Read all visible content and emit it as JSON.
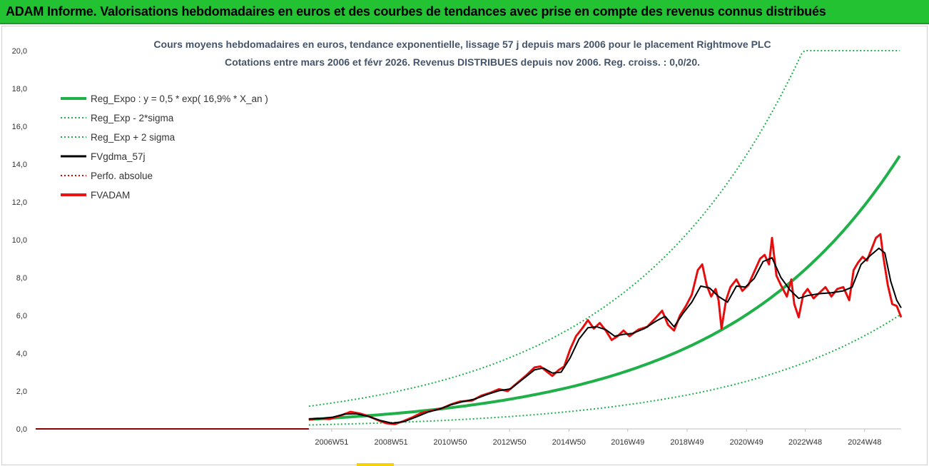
{
  "header": {
    "title": "ADAM Informe. Valorisations hebdomadaires en euros et des courbes de tendances avec prise en compte des revenus connus distribués",
    "background": "#22c232"
  },
  "chart_data": {
    "type": "line",
    "title": "Cours moyens hebdomadaires en euros, tendance exponentielle, lissage 57 j depuis mars 2006 pour le placement Rightmove PLC",
    "subtitle": "Cotations entre mars 2006 et févr 2026. Revenus DISTRIBUES depuis nov 2006. Reg. croiss. : 0,0/20.",
    "ylim": [
      0,
      20
    ],
    "y_ticks": [
      "0,0",
      "2,0",
      "4,0",
      "6,0",
      "8,0",
      "10,0",
      "12,0",
      "14,0",
      "16,0",
      "18,0",
      "20,0"
    ],
    "x_tick_labels": [
      {
        "label": "2006W51",
        "year": 2006.97
      },
      {
        "label": "2008W51",
        "year": 2008.97
      },
      {
        "label": "2010W50",
        "year": 2010.96
      },
      {
        "label": "2012W50",
        "year": 2012.96
      },
      {
        "label": "2014W50",
        "year": 2014.96
      },
      {
        "label": "2016W49",
        "year": 2016.94
      },
      {
        "label": "2018W49",
        "year": 2018.94
      },
      {
        "label": "2020W49",
        "year": 2020.94
      },
      {
        "label": "2022W48",
        "year": 2022.92
      },
      {
        "label": "2024W48",
        "year": 2024.92
      }
    ],
    "xlim": [
      1997.0,
      2026.15
    ],
    "data_start": 2006.2,
    "regression": {
      "a": 0.5,
      "rate": 0.169,
      "sigma_mult": 2.4,
      "cap": 20
    },
    "legend_position": "top-left",
    "legend": [
      {
        "name": "Reg_Expo : y = 0,5 * exp( 16,9% *  X_an )",
        "color": "#1fb04a",
        "style": "solid-thick"
      },
      {
        "name": "Reg_Exp - 2*sigma",
        "color": "#1fb04a",
        "style": "dotted"
      },
      {
        "name": "Reg_Exp + 2 sigma",
        "color": "#1fb04a",
        "style": "dotted"
      },
      {
        "name": "FVgdma_57j",
        "color": "#000000",
        "style": "solid"
      },
      {
        "name": "Perfo. absolue",
        "color": "#e00000",
        "style": "dotted"
      },
      {
        "name": "FVADAM",
        "color": "#ee1111",
        "style": "solid-thick"
      }
    ],
    "fvadam": [
      [
        2006.2,
        0.5
      ],
      [
        2006.5,
        0.55
      ],
      [
        2006.9,
        0.52
      ],
      [
        2007.3,
        0.72
      ],
      [
        2007.6,
        0.9
      ],
      [
        2007.9,
        0.82
      ],
      [
        2008.2,
        0.68
      ],
      [
        2008.5,
        0.48
      ],
      [
        2008.8,
        0.3
      ],
      [
        2009.1,
        0.25
      ],
      [
        2009.4,
        0.42
      ],
      [
        2009.7,
        0.62
      ],
      [
        2010.0,
        0.85
      ],
      [
        2010.3,
        0.95
      ],
      [
        2010.7,
        1.1
      ],
      [
        2011.0,
        1.3
      ],
      [
        2011.3,
        1.45
      ],
      [
        2011.7,
        1.5
      ],
      [
        2012.0,
        1.75
      ],
      [
        2012.3,
        1.9
      ],
      [
        2012.6,
        2.1
      ],
      [
        2012.9,
        2.0
      ],
      [
        2013.2,
        2.4
      ],
      [
        2013.5,
        2.8
      ],
      [
        2013.8,
        3.25
      ],
      [
        2014.0,
        3.3
      ],
      [
        2014.2,
        3.05
      ],
      [
        2014.4,
        2.8
      ],
      [
        2014.6,
        3.1
      ],
      [
        2014.8,
        3.3
      ],
      [
        2015.0,
        4.2
      ],
      [
        2015.2,
        4.9
      ],
      [
        2015.4,
        5.3
      ],
      [
        2015.6,
        5.75
      ],
      [
        2015.8,
        5.3
      ],
      [
        2016.0,
        5.6
      ],
      [
        2016.2,
        5.2
      ],
      [
        2016.4,
        4.7
      ],
      [
        2016.6,
        4.9
      ],
      [
        2016.8,
        5.2
      ],
      [
        2017.0,
        4.9
      ],
      [
        2017.3,
        5.25
      ],
      [
        2017.6,
        5.4
      ],
      [
        2017.9,
        5.9
      ],
      [
        2018.1,
        6.25
      ],
      [
        2018.3,
        5.5
      ],
      [
        2018.5,
        5.2
      ],
      [
        2018.7,
        6.0
      ],
      [
        2018.9,
        6.5
      ],
      [
        2019.1,
        7.1
      ],
      [
        2019.3,
        8.4
      ],
      [
        2019.45,
        8.7
      ],
      [
        2019.6,
        7.6
      ],
      [
        2019.75,
        7.0
      ],
      [
        2019.9,
        7.4
      ],
      [
        2020.0,
        6.8
      ],
      [
        2020.1,
        5.3
      ],
      [
        2020.25,
        6.8
      ],
      [
        2020.4,
        7.5
      ],
      [
        2020.6,
        7.9
      ],
      [
        2020.8,
        7.3
      ],
      [
        2021.0,
        7.6
      ],
      [
        2021.2,
        8.3
      ],
      [
        2021.4,
        9.0
      ],
      [
        2021.55,
        9.2
      ],
      [
        2021.7,
        8.7
      ],
      [
        2021.8,
        10.1
      ],
      [
        2021.95,
        8.1
      ],
      [
        2022.1,
        7.6
      ],
      [
        2022.3,
        7.0
      ],
      [
        2022.45,
        7.9
      ],
      [
        2022.55,
        6.6
      ],
      [
        2022.7,
        5.9
      ],
      [
        2022.85,
        7.1
      ],
      [
        2023.0,
        7.4
      ],
      [
        2023.2,
        6.9
      ],
      [
        2023.4,
        7.2
      ],
      [
        2023.6,
        7.5
      ],
      [
        2023.8,
        7.0
      ],
      [
        2024.0,
        7.4
      ],
      [
        2024.2,
        7.5
      ],
      [
        2024.4,
        6.8
      ],
      [
        2024.55,
        8.4
      ],
      [
        2024.7,
        8.8
      ],
      [
        2024.85,
        9.1
      ],
      [
        2025.0,
        8.9
      ],
      [
        2025.15,
        9.5
      ],
      [
        2025.3,
        10.1
      ],
      [
        2025.45,
        10.3
      ],
      [
        2025.55,
        9.1
      ],
      [
        2025.7,
        7.6
      ],
      [
        2025.85,
        6.6
      ],
      [
        2026.0,
        6.5
      ],
      [
        2026.15,
        5.9
      ]
    ],
    "fvgdma": [
      [
        2006.2,
        0.52
      ],
      [
        2006.6,
        0.55
      ],
      [
        2007.0,
        0.62
      ],
      [
        2007.4,
        0.78
      ],
      [
        2007.8,
        0.8
      ],
      [
        2008.2,
        0.66
      ],
      [
        2008.6,
        0.45
      ],
      [
        2009.0,
        0.3
      ],
      [
        2009.4,
        0.38
      ],
      [
        2009.8,
        0.62
      ],
      [
        2010.2,
        0.88
      ],
      [
        2010.6,
        1.05
      ],
      [
        2011.0,
        1.28
      ],
      [
        2011.4,
        1.45
      ],
      [
        2011.8,
        1.58
      ],
      [
        2012.2,
        1.82
      ],
      [
        2012.6,
        2.02
      ],
      [
        2013.0,
        2.12
      ],
      [
        2013.4,
        2.62
      ],
      [
        2013.8,
        3.12
      ],
      [
        2014.1,
        3.22
      ],
      [
        2014.4,
        2.95
      ],
      [
        2014.7,
        3.0
      ],
      [
        2015.0,
        3.75
      ],
      [
        2015.3,
        4.75
      ],
      [
        2015.6,
        5.35
      ],
      [
        2015.9,
        5.4
      ],
      [
        2016.2,
        5.25
      ],
      [
        2016.5,
        4.9
      ],
      [
        2016.8,
        5.0
      ],
      [
        2017.1,
        5.05
      ],
      [
        2017.5,
        5.3
      ],
      [
        2017.9,
        5.7
      ],
      [
        2018.2,
        5.95
      ],
      [
        2018.5,
        5.4
      ],
      [
        2018.8,
        6.1
      ],
      [
        2019.1,
        6.7
      ],
      [
        2019.4,
        7.55
      ],
      [
        2019.7,
        7.45
      ],
      [
        2020.0,
        7.0
      ],
      [
        2020.3,
        6.7
      ],
      [
        2020.6,
        7.55
      ],
      [
        2020.9,
        7.5
      ],
      [
        2021.2,
        7.95
      ],
      [
        2021.5,
        8.85
      ],
      [
        2021.8,
        9.05
      ],
      [
        2022.1,
        8.0
      ],
      [
        2022.4,
        7.35
      ],
      [
        2022.7,
        6.9
      ],
      [
        2023.0,
        7.05
      ],
      [
        2023.4,
        7.15
      ],
      [
        2023.8,
        7.2
      ],
      [
        2024.2,
        7.3
      ],
      [
        2024.5,
        7.5
      ],
      [
        2024.8,
        8.7
      ],
      [
        2025.1,
        9.15
      ],
      [
        2025.4,
        9.55
      ],
      [
        2025.6,
        9.3
      ],
      [
        2025.8,
        7.8
      ],
      [
        2026.0,
        6.8
      ],
      [
        2026.15,
        6.4
      ]
    ]
  }
}
